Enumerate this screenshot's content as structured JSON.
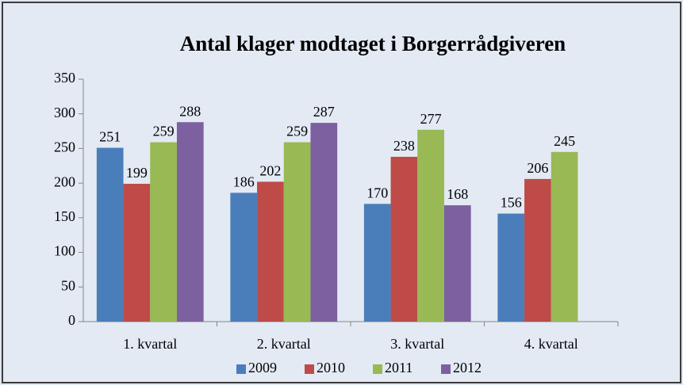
{
  "chart_data": {
    "type": "bar",
    "title": "Antal klager modtaget i Borgerrådgiveren",
    "categories": [
      "1. kvartal",
      "2. kvartal",
      "3. kvartal",
      "4. kvartal"
    ],
    "series": [
      {
        "name": "2009",
        "color": "#4a7ebb",
        "values": [
          251,
          186,
          170,
          156
        ]
      },
      {
        "name": "2010",
        "color": "#be4b48",
        "values": [
          199,
          202,
          238,
          206
        ]
      },
      {
        "name": "2011",
        "color": "#98b954",
        "values": [
          259,
          259,
          277,
          245
        ]
      },
      {
        "name": "2012",
        "color": "#7d60a0",
        "values": [
          288,
          287,
          168,
          null
        ]
      }
    ],
    "ylim": [
      0,
      350
    ],
    "yticks": [
      0,
      50,
      100,
      150,
      200,
      250,
      300,
      350
    ],
    "grid": false,
    "legend": "bottom"
  }
}
